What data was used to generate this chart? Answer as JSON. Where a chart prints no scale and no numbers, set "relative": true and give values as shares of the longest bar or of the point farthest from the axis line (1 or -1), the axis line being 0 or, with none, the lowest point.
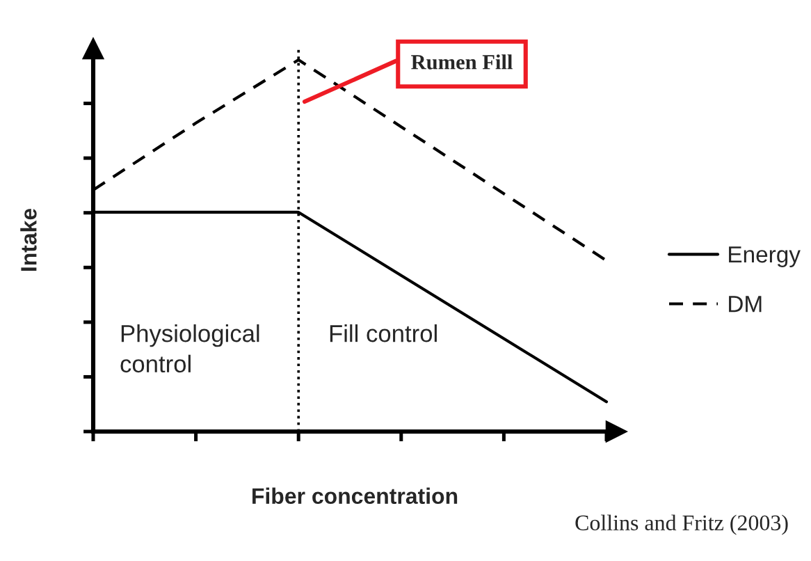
{
  "chart_data": {
    "type": "line",
    "relative": true,
    "xlabel": "Fiber concentration",
    "ylabel": "Intake",
    "categories": [
      null,
      null,
      null,
      null,
      null,
      null
    ],
    "series": [
      {
        "name": "Energy",
        "color": "#000000",
        "line_style": "solid",
        "values": [
          0.59,
          0.59,
          0.59,
          0.42,
          0.25,
          0.08
        ]
      },
      {
        "name": "DM",
        "color": "#000000",
        "line_style": "dashed",
        "values": [
          0.65,
          0.83,
          1,
          0.82,
          0.64,
          0.46
        ]
      }
    ],
    "annotations": [
      "Physiological control",
      "Fill control",
      "Rumen Fill",
      "Collins and Fritz (2003)"
    ],
    "legend": "right",
    "tick_labels": false
  }
}
